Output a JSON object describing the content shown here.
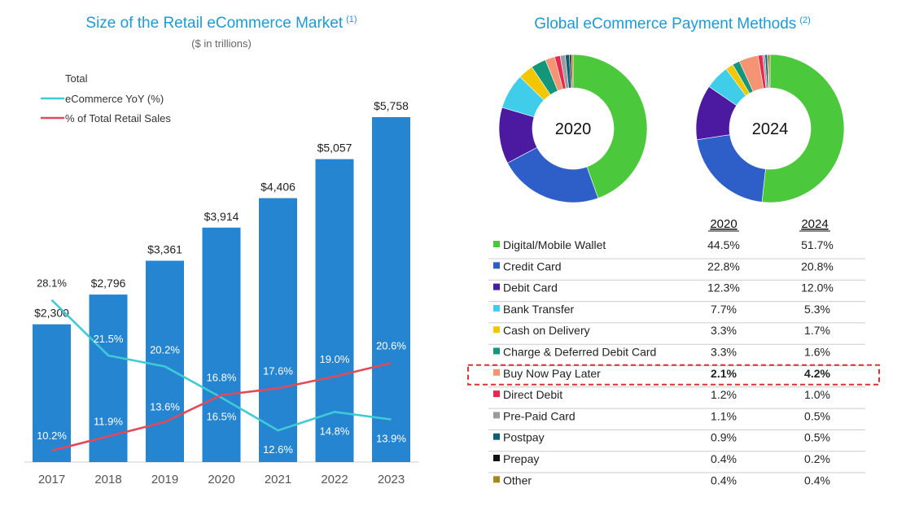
{
  "chart_data": [
    {
      "type": "bar",
      "title": "Size of the Retail eCommerce Market",
      "title_note": "(1)",
      "subtitle": "($ in trillions)",
      "categories": [
        "2017",
        "2018",
        "2019",
        "2020",
        "2021",
        "2022",
        "2023"
      ],
      "series": [
        {
          "name": "Total",
          "type": "bar",
          "color": "#2585d0",
          "values": [
            2300,
            2796,
            3361,
            3914,
            4406,
            5057,
            5758
          ],
          "labels": [
            "$2,300",
            "$2,796",
            "$3,361",
            "$3,914",
            "$4,406",
            "$5,057",
            "$5,758"
          ]
        },
        {
          "name": "eCommerce YoY (%)",
          "type": "line",
          "color": "#3ecbd6",
          "values": [
            28.1,
            21.5,
            20.2,
            16.5,
            12.6,
            14.8,
            13.9
          ],
          "labels": [
            "28.1%",
            "21.5%",
            "20.2%",
            "16.5%",
            "12.6%",
            "14.8%",
            "13.9%"
          ]
        },
        {
          "name": "% of Total Retail Sales",
          "type": "line",
          "color": "#e04a59",
          "values": [
            10.2,
            11.9,
            13.6,
            16.8,
            17.6,
            19.0,
            20.6
          ],
          "labels": [
            "10.2%",
            "11.9%",
            "13.6%",
            "16.8%",
            "17.6%",
            "19.0%",
            "20.6%"
          ]
        }
      ],
      "legend_position": "top-left",
      "grid": false
    },
    {
      "type": "pie",
      "title": "Global eCommerce Payment Methods",
      "title_note": "(2)",
      "donut_labels": [
        "2020",
        "2024"
      ],
      "column_headers": [
        "2020",
        "2024"
      ],
      "categories": [
        "Digital/Mobile Wallet",
        "Credit Card",
        "Debit Card",
        "Bank Transfer",
        "Cash on Delivery",
        "Charge & Deferred Debit Card",
        "Buy Now Pay Later",
        "Direct Debit",
        "Pre-Paid Card",
        "Postpay",
        "Prepay",
        "Other"
      ],
      "colors": [
        "#4cc83c",
        "#2e5fc9",
        "#4b1aa0",
        "#3fcdea",
        "#f2c700",
        "#14967a",
        "#f59473",
        "#e8294f",
        "#9b9b9b",
        "#0f5c79",
        "#111111",
        "#a8861e"
      ],
      "series": [
        {
          "name": "2020",
          "values": [
            44.5,
            22.8,
            12.3,
            7.7,
            3.3,
            3.3,
            2.1,
            1.2,
            1.1,
            0.9,
            0.4,
            0.4
          ],
          "labels": [
            "44.5%",
            "22.8%",
            "12.3%",
            "7.7%",
            "3.3%",
            "3.3%",
            "2.1%",
            "1.2%",
            "1.1%",
            "0.9%",
            "0.4%",
            "0.4%"
          ]
        },
        {
          "name": "2024",
          "values": [
            51.7,
            20.8,
            12.0,
            5.3,
            1.7,
            1.6,
            4.2,
            1.0,
            0.5,
            0.5,
            0.2,
            0.4
          ],
          "labels": [
            "51.7%",
            "20.8%",
            "12.0%",
            "5.3%",
            "1.7%",
            "1.6%",
            "4.2%",
            "1.0%",
            "0.5%",
            "0.5%",
            "0.2%",
            "0.4%"
          ]
        }
      ],
      "highlighted_category": "Buy Now Pay Later",
      "highlight_color": "#e03030"
    }
  ]
}
